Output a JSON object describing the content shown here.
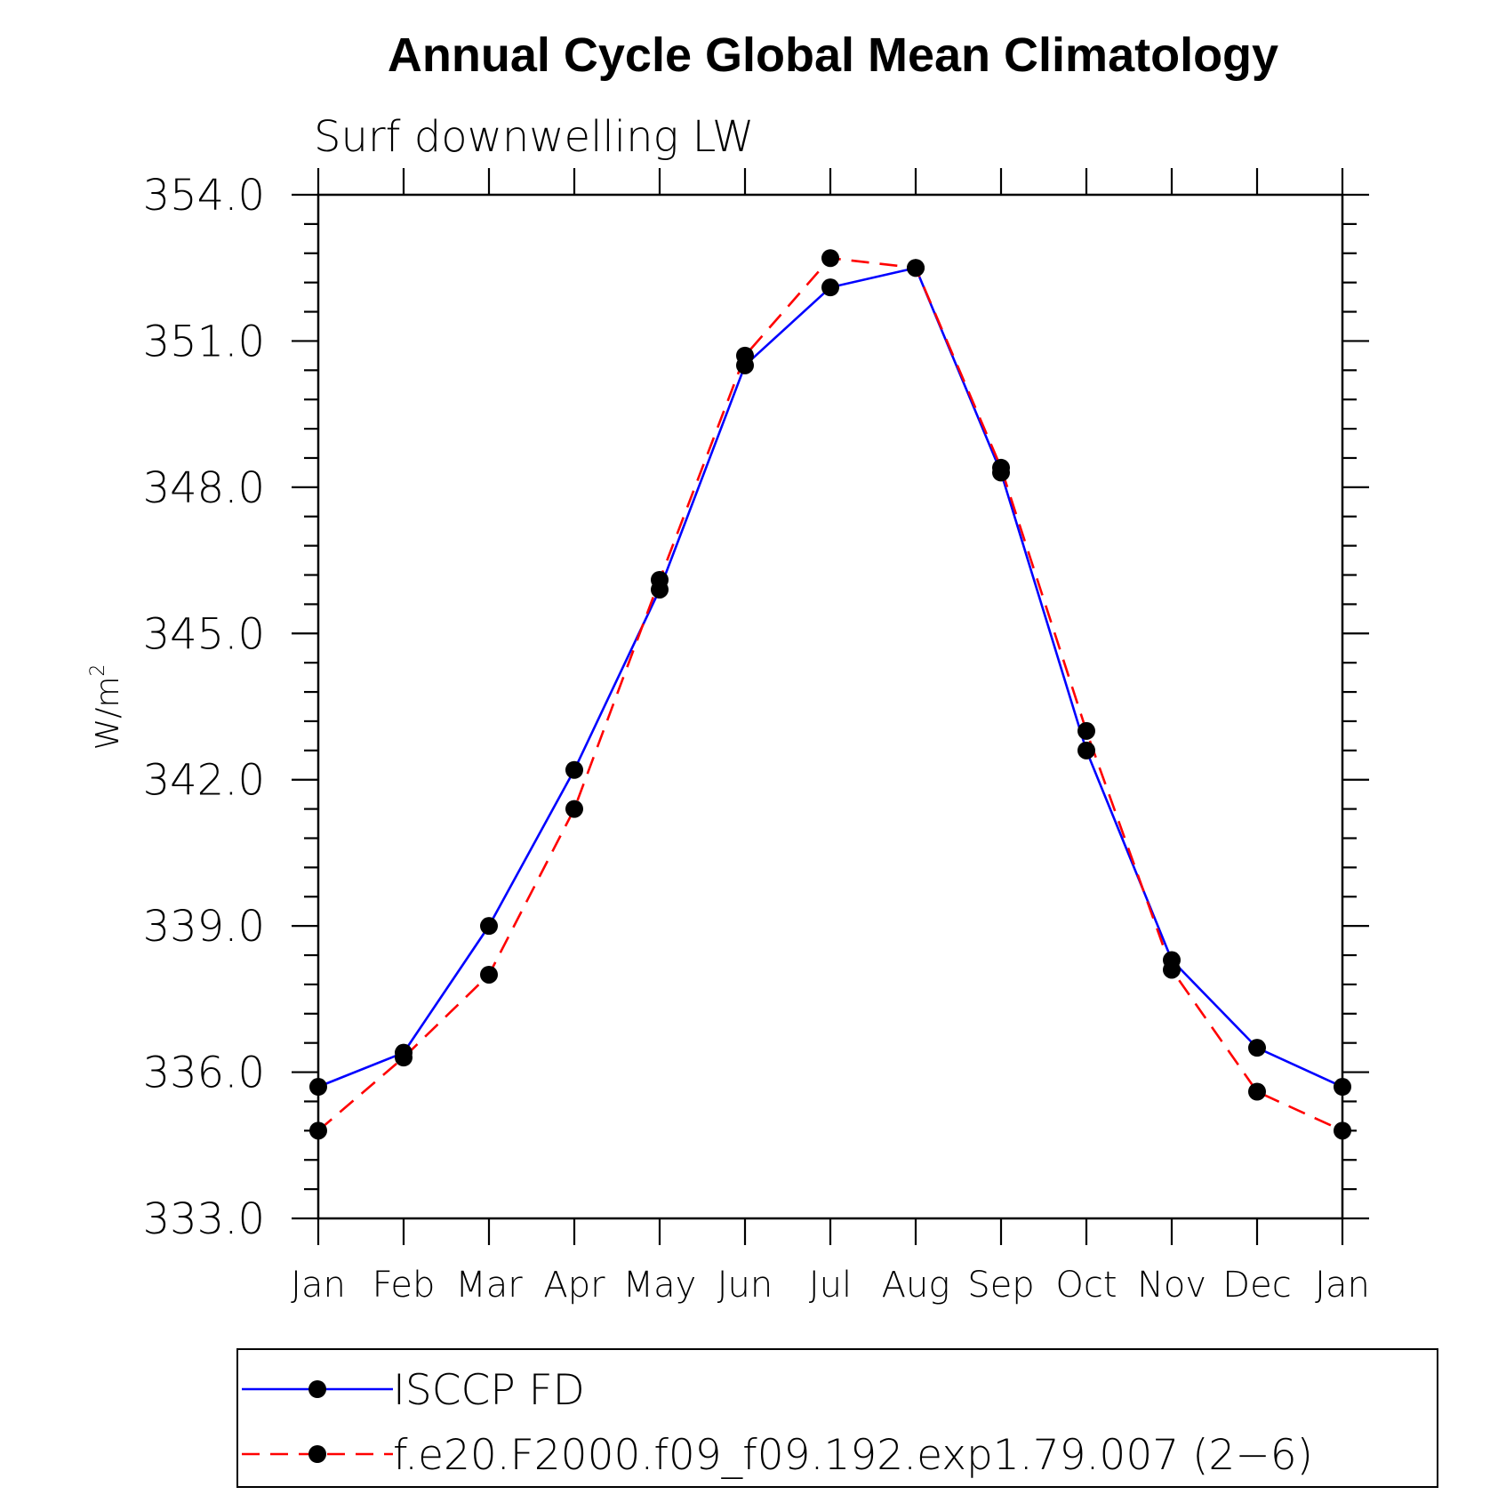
{
  "chart_data": {
    "type": "line",
    "title": "Annual Cycle Global Mean Climatology",
    "subtitle": "Surf downwelling LW",
    "ylabel": "W/m",
    "ylabel_sup": "2",
    "ylim": [
      333.0,
      354.0
    ],
    "yticks": [
      333.0,
      336.0,
      339.0,
      342.0,
      345.0,
      348.0,
      351.0,
      354.0
    ],
    "ytick_labels": [
      "333.0",
      "336.0",
      "339.0",
      "342.0",
      "345.0",
      "348.0",
      "351.0",
      "354.0"
    ],
    "categories": [
      "Jan",
      "Feb",
      "Mar",
      "Apr",
      "May",
      "Jun",
      "Jul",
      "Aug",
      "Sep",
      "Oct",
      "Nov",
      "Dec",
      "Jan"
    ],
    "legend_position": "bottom",
    "series": [
      {
        "name": "ISCCP FD",
        "color": "#0000ff",
        "dash": "solid",
        "marker": "filled-circle",
        "values": [
          335.7,
          336.4,
          339.0,
          342.2,
          345.9,
          350.5,
          352.1,
          352.5,
          348.3,
          342.6,
          338.3,
          336.5,
          335.7
        ]
      },
      {
        "name": "f.e20.F2000.f09_f09.192.exp1.79.007 (2−6)",
        "color": "#ff0000",
        "dash": "dashed",
        "marker": "filled-circle",
        "values": [
          334.8,
          336.3,
          338.0,
          341.4,
          346.1,
          350.7,
          352.7,
          352.5,
          348.4,
          343.0,
          338.1,
          335.6,
          334.8
        ]
      }
    ]
  }
}
